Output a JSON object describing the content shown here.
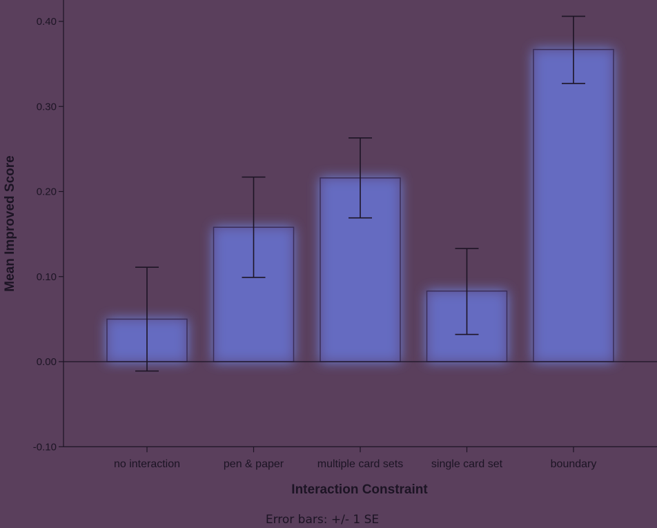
{
  "chart_data": {
    "type": "bar",
    "title": "",
    "xlabel": "Interaction Constraint",
    "ylabel": "Mean Improved Score",
    "footnote": "Error bars: +/- 1 SE",
    "categories": [
      "no interaction",
      "pen & paper",
      "multiple card sets",
      "single card set",
      "boundary"
    ],
    "values": [
      0.05,
      0.158,
      0.216,
      0.083,
      0.367
    ],
    "error_low": [
      -0.011,
      0.099,
      0.169,
      0.032,
      0.327
    ],
    "error_high": [
      0.111,
      0.217,
      0.263,
      0.133,
      0.406
    ],
    "ylim": [
      -0.1,
      0.42
    ],
    "yticks": [
      -0.1,
      0.0,
      0.1,
      0.2,
      0.3,
      0.4
    ],
    "ytick_labels": [
      "-0.10",
      "0.00",
      "0.10",
      "0.20",
      "0.30",
      "0.40"
    ],
    "grid": false,
    "colors": {
      "background": "#5a3f5c",
      "bar_fill": "#5f57a6",
      "bar_glow": "#6f8cf2",
      "bar_edge": "#3a2c55",
      "axis": "#1c1424"
    }
  }
}
